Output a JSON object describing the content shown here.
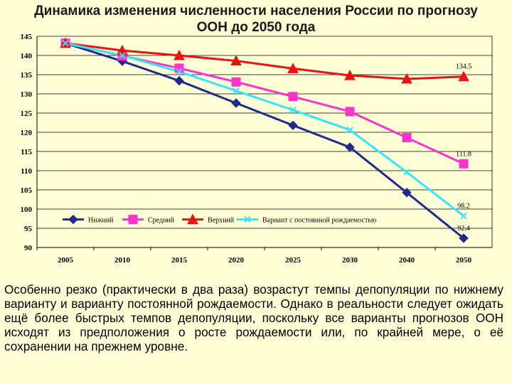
{
  "title": "Динамика изменения численности населения России по прогнозу ООН до 2050 года",
  "caption": "Особенно резко (практически в два раза) возрастут темпы депопуляции по нижнему варианту и варианту постоянной рождаемости. Однако в реальности следует ожидать ещё более быстрых темпов депопуляции, поскольку все варианты прогнозов ООН исходят из предположения о росте рождаемости или, по крайней мере, о её сохранении на прежнем уровне.",
  "chart_data": {
    "type": "line",
    "title": "Динамика изменения численности населения России по прогнозу ООН до 2050 года",
    "categories": [
      "2005",
      "2010",
      "2015",
      "2020",
      "2025",
      "2030",
      "2040",
      "2050"
    ],
    "ylim": [
      90,
      145
    ],
    "y_ticks": [
      "90",
      "95",
      "100",
      "105",
      "110",
      "115",
      "120",
      "125",
      "130",
      "135",
      "140",
      "145"
    ],
    "grid": "horizontal",
    "legend_position": "inside-bottom",
    "series": [
      {
        "name": "Нижний",
        "color": "#1f2a8a",
        "marker": "diamond",
        "values": [
          143.2,
          138.5,
          133.4,
          127.6,
          121.8,
          116.1,
          104.3,
          92.4
        ],
        "end_label": "92.4"
      },
      {
        "name": "Средний",
        "color": "#ff33cc",
        "marker": "square",
        "values": [
          143.2,
          139.9,
          136.7,
          133.1,
          129.3,
          125.4,
          118.6,
          111.8
        ],
        "end_label": "111.8"
      },
      {
        "name": "Верхний",
        "color": "#ee1111",
        "marker": "triangle",
        "values": [
          143.2,
          141.3,
          140.0,
          138.6,
          136.6,
          134.8,
          133.9,
          134.5
        ],
        "end_label": "134.5"
      },
      {
        "name": "Вариант с постоянной рождаемостью",
        "color": "#33e5ff",
        "marker": "x",
        "values": [
          143.2,
          140.0,
          135.8,
          130.8,
          125.8,
          120.6,
          109.6,
          98.2
        ],
        "end_label": "98.2"
      }
    ]
  }
}
